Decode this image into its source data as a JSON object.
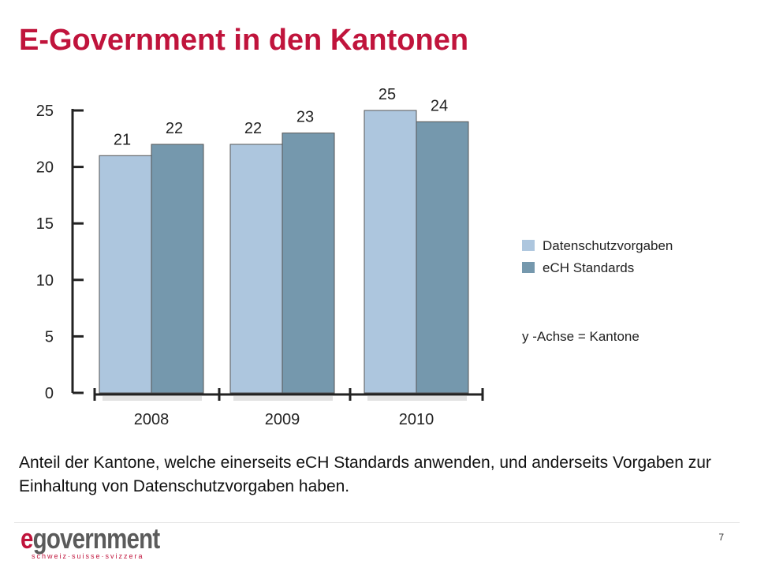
{
  "slide": {
    "title": "E-Government in den Kantonen",
    "caption": "Anteil der Kantone, welche einerseits eCH Standards anwenden, und anderseits Vorgaben zur Einhaltung von Datenschutzvorgaben haben.",
    "page_number": "7"
  },
  "logo": {
    "e": "e",
    "rest": "government",
    "tagline": "schweiz·suisse·svizzera"
  },
  "chart_data": {
    "type": "bar",
    "categories": [
      "2008",
      "2009",
      "2010"
    ],
    "series": [
      {
        "name": "Datenschutzvorgaben",
        "values": [
          21,
          22,
          25
        ],
        "color": "#adc6de"
      },
      {
        "name": "eCH Standards",
        "values": [
          22,
          23,
          24
        ],
        "color": "#7598ad"
      }
    ],
    "ylim": [
      0,
      25
    ],
    "yticks": [
      0,
      5,
      10,
      15,
      20,
      25
    ],
    "legend": "right",
    "note": "y -Achse = Kantone",
    "grid": false
  }
}
